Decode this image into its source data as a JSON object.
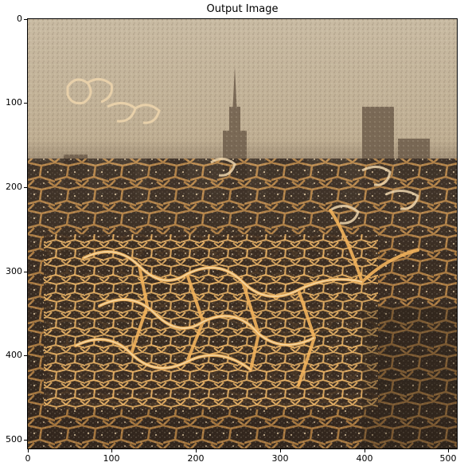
{
  "figure": {
    "title": "Output Image",
    "image_description_name": "style-transfer-output",
    "x_ticks": [
      "0",
      "100",
      "200",
      "300",
      "400",
      "500"
    ],
    "y_ticks": [
      "0",
      "100",
      "200",
      "300",
      "400",
      "500"
    ],
    "x_tick_values": [
      0,
      100,
      200,
      300,
      400,
      500
    ],
    "y_tick_values": [
      0,
      100,
      200,
      300,
      400,
      500
    ],
    "extent": [
      0,
      512
    ],
    "colors": {
      "sky": "#c8b9a0",
      "haze": "#b5a286",
      "city_dark": "#3a2c22",
      "glow": "#f2b35c",
      "glow_light": "#f6d6a4"
    }
  }
}
